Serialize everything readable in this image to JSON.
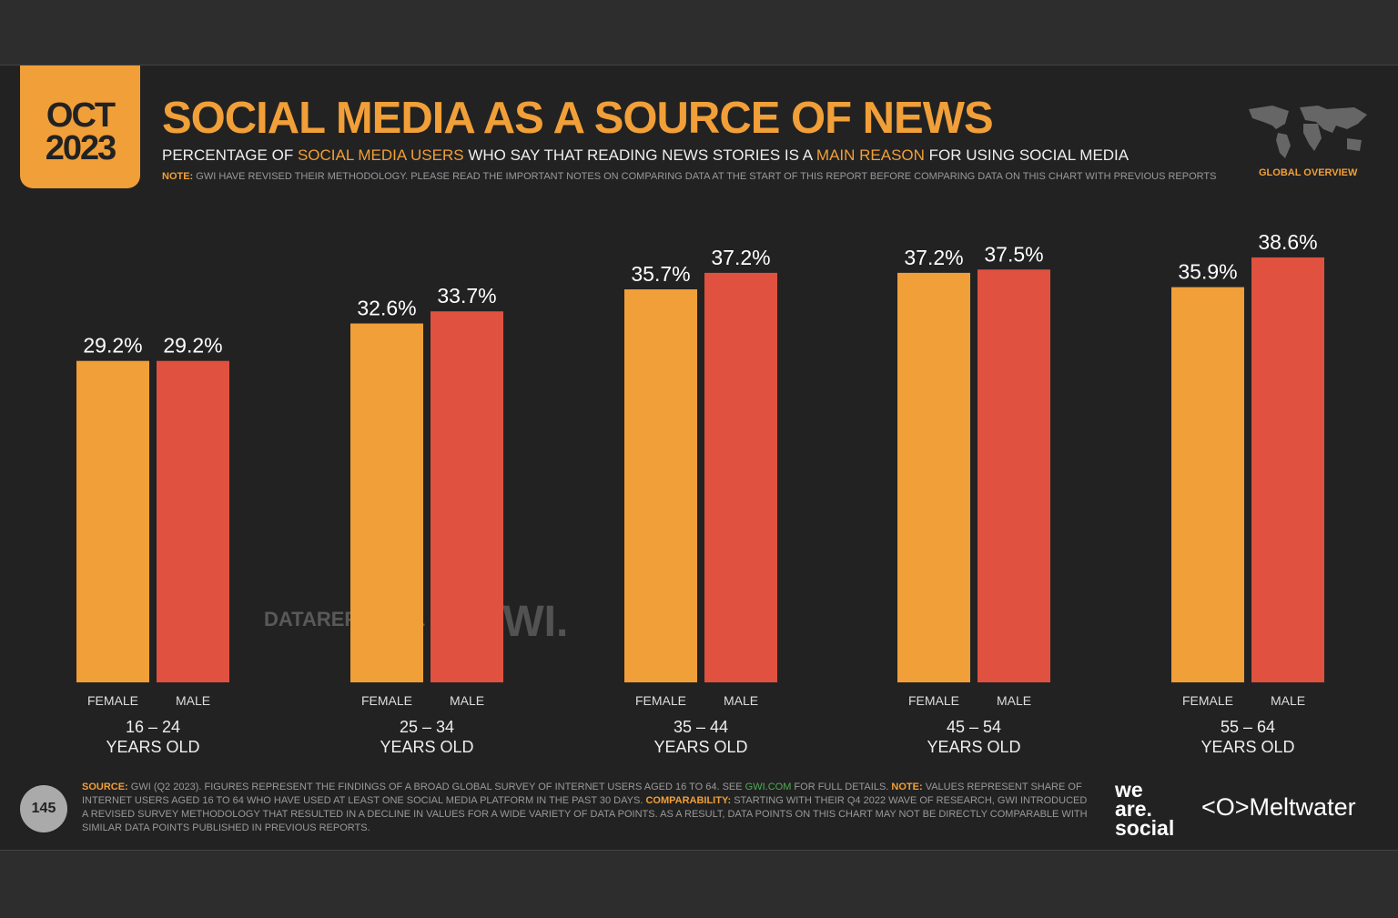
{
  "header": {
    "date_month": "OCT",
    "date_year": "2023",
    "title": "SOCIAL MEDIA AS A SOURCE OF NEWS",
    "subtitle_parts": [
      "PERCENTAGE OF ",
      "SOCIAL MEDIA USERS",
      " WHO SAY THAT READING NEWS STORIES IS A ",
      "MAIN REASON",
      " FOR USING SOCIAL MEDIA"
    ],
    "note_label": "NOTE:",
    "note_text": " GWI HAVE REVISED THEIR METHODOLOGY. PLEASE READ THE IMPORTANT NOTES ON COMPARING DATA AT THE START OF THIS REPORT BEFORE COMPARING DATA ON THIS CHART WITH PREVIOUS REPORTS",
    "region": "GLOBAL OVERVIEW"
  },
  "chart_data": {
    "type": "bar",
    "categories": [
      "16 – 24",
      "25 – 34",
      "35 – 44",
      "45 – 54",
      "55 – 64"
    ],
    "category_suffix": "YEARS OLD",
    "series": [
      {
        "name": "FEMALE",
        "color": "#f19f38",
        "values": [
          29.2,
          32.6,
          35.7,
          37.2,
          35.9
        ]
      },
      {
        "name": "MALE",
        "color": "#e05140",
        "values": [
          29.2,
          33.7,
          37.2,
          37.5,
          38.6
        ]
      }
    ],
    "value_format": "%",
    "ylim": [
      0,
      40
    ],
    "grid": false
  },
  "watermarks": {
    "datareportal": "DATAREPORTAL",
    "gwi": "GWI."
  },
  "footer": {
    "page": "145",
    "source_label": "SOURCE:",
    "source_text": " GWI (Q2 2023). FIGURES REPRESENT THE FINDINGS OF A BROAD GLOBAL SURVEY OF INTERNET USERS AGED 16 TO 64. SEE ",
    "link": "GWI.COM",
    "after_link": " FOR FULL DETAILS. ",
    "note_label": "NOTE:",
    "note_text": " VALUES REPRESENT SHARE OF INTERNET USERS AGED 16 TO 64 WHO HAVE USED AT LEAST ONE SOCIAL MEDIA PLATFORM IN THE PAST 30 DAYS. ",
    "comp_label": "COMPARABILITY:",
    "comp_text": " STARTING WITH THEIR Q4 2022 WAVE OF RESEARCH, GWI INTRODUCED A REVISED SURVEY METHODOLOGY THAT RESULTED IN A DECLINE IN VALUES FOR A WIDE VARIETY OF DATA POINTS. AS A RESULT, DATA POINTS ON THIS CHART MAY NOT BE DIRECTLY COMPARABLE WITH SIMILAR DATA POINTS PUBLISHED IN PREVIOUS REPORTS.",
    "logo_was": [
      "we",
      "are.",
      "social"
    ],
    "logo_meltwater": "Meltwater"
  }
}
